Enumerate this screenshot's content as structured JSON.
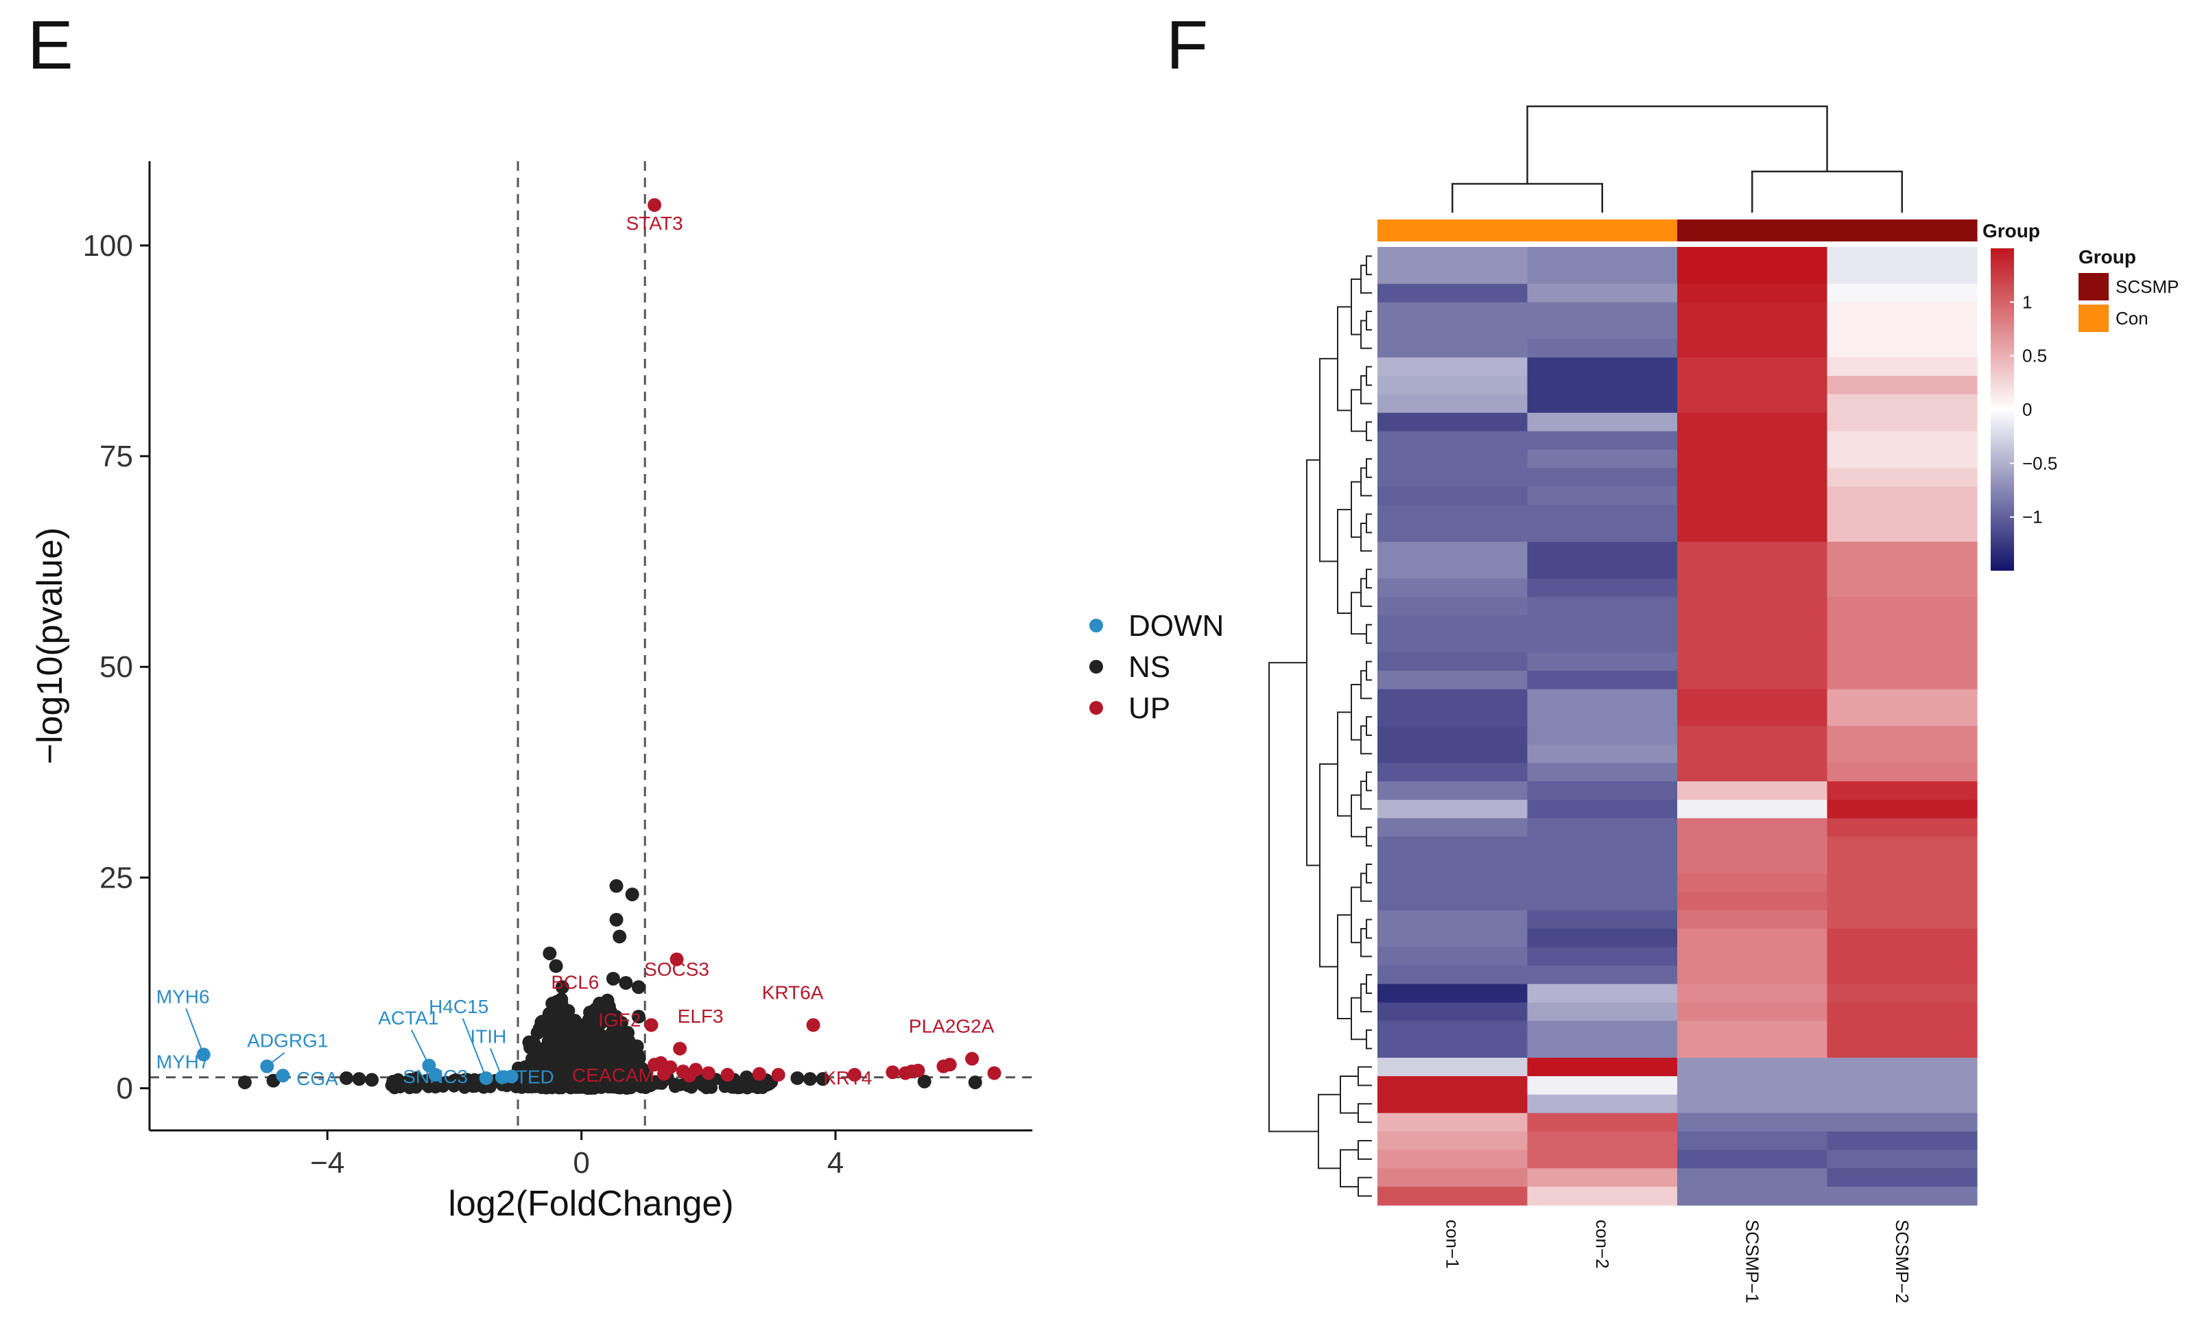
{
  "panels": {
    "left_label": "E",
    "right_label": "F"
  },
  "chart_data": [
    {
      "type": "scatter",
      "panel": "E",
      "xlabel": "log2(FoldChange)",
      "ylabel": "−log10(pvalue)",
      "xlim": [
        -6.8,
        7.1
      ],
      "ylim": [
        -5,
        110
      ],
      "xticks": [
        {
          "v": -4,
          "label": "−4"
        },
        {
          "v": 0,
          "label": "0"
        },
        {
          "v": 4,
          "label": "4"
        }
      ],
      "yticks": [
        {
          "v": 0,
          "label": "0"
        },
        {
          "v": 25,
          "label": "25"
        },
        {
          "v": 50,
          "label": "50"
        },
        {
          "v": 75,
          "label": "75"
        },
        {
          "v": 100,
          "label": "100"
        }
      ],
      "grid": false,
      "thresholds": {
        "x": [
          -1,
          1
        ],
        "y": 1.3
      },
      "legend": {
        "position": "right",
        "entries": [
          {
            "label": "DOWN",
            "color": "#2b8cc4"
          },
          {
            "label": "NS",
            "color": "#222222"
          },
          {
            "label": "UP",
            "color": "#b5172a"
          }
        ]
      },
      "series": {
        "DOWN": [
          [
            -5.95,
            4.0
          ],
          [
            -4.95,
            2.6
          ],
          [
            -4.7,
            1.5
          ],
          [
            -2.4,
            2.7
          ],
          [
            -2.3,
            1.6
          ],
          [
            -1.5,
            1.2
          ],
          [
            -1.25,
            1.3
          ],
          [
            -1.1,
            1.4
          ]
        ],
        "UP": [
          [
            1.15,
            104.8
          ],
          [
            1.5,
            15.3
          ],
          [
            1.1,
            7.5
          ],
          [
            1.55,
            4.7
          ],
          [
            3.65,
            7.5
          ],
          [
            1.15,
            2.8
          ],
          [
            1.25,
            3.0
          ],
          [
            1.4,
            2.5
          ],
          [
            1.6,
            2.0
          ],
          [
            1.8,
            2.2
          ],
          [
            2.0,
            1.8
          ],
          [
            2.3,
            1.6
          ],
          [
            2.8,
            1.7
          ],
          [
            3.1,
            1.6
          ],
          [
            4.3,
            1.6
          ],
          [
            4.9,
            1.9
          ],
          [
            5.1,
            1.8
          ],
          [
            5.2,
            2.0
          ],
          [
            5.3,
            2.1
          ],
          [
            5.7,
            2.6
          ],
          [
            5.8,
            2.8
          ],
          [
            6.15,
            3.5
          ],
          [
            6.5,
            1.8
          ],
          [
            1.3,
            1.7
          ],
          [
            1.7,
            1.5
          ]
        ],
        "NS": [
          [
            0.55,
            24.0
          ],
          [
            0.8,
            23.0
          ],
          [
            0.55,
            20.0
          ],
          [
            0.6,
            18.0
          ],
          [
            0.5,
            13.0
          ],
          [
            0.7,
            12.5
          ],
          [
            -0.5,
            16.0
          ],
          [
            -0.4,
            14.5
          ],
          [
            -0.3,
            12.0
          ],
          [
            0.9,
            8.5
          ],
          [
            0.9,
            12.0
          ],
          [
            -5.3,
            0.7
          ],
          [
            -4.85,
            0.9
          ],
          [
            -3.7,
            1.2
          ],
          [
            -3.5,
            1.1
          ],
          [
            -3.3,
            1.0
          ],
          [
            -2.7,
            1.0
          ],
          [
            -2.6,
            1.2
          ],
          [
            -2.0,
            0.9
          ],
          [
            -1.8,
            1.0
          ],
          [
            1.35,
            1.3
          ],
          [
            2.6,
            1.3
          ],
          [
            3.4,
            1.2
          ],
          [
            3.6,
            1.1
          ],
          [
            3.8,
            1.1
          ],
          [
            5.4,
            0.8
          ],
          [
            6.2,
            0.7
          ]
        ]
      },
      "labels": [
        {
          "text": "STAT3",
          "x": 1.15,
          "y": 104.8,
          "group": "UP"
        },
        {
          "text": "SOCS3",
          "x": 1.5,
          "y": 15.3,
          "group": "UP"
        },
        {
          "text": "BCL6",
          "x": -0.1,
          "y": 10.5,
          "group": "UP"
        },
        {
          "text": "IGF2",
          "x": 0.6,
          "y": 6.5,
          "group": "UP"
        },
        {
          "text": "ELF3",
          "x": 1.55,
          "y": 4.7,
          "group": "UP"
        },
        {
          "text": "KRT6A",
          "x": 3.65,
          "y": 7.5,
          "group": "UP"
        },
        {
          "text": "PLA2G2A",
          "x": 6.15,
          "y": 3.5,
          "group": "UP"
        },
        {
          "text": "KRT4",
          "x": 4.3,
          "y": 1.6,
          "group": "UP"
        },
        {
          "text": "CEACAM",
          "x": 0.5,
          "y": 1.6,
          "group": "UP"
        },
        {
          "text": "MYH6",
          "x": -5.95,
          "y": 4.0,
          "group": "DOWN"
        },
        {
          "text": "MYH7",
          "x": -5.95,
          "y": 4.0,
          "group": "DOWN"
        },
        {
          "text": "ADGRG1",
          "x": -4.95,
          "y": 2.6,
          "group": "DOWN"
        },
        {
          "text": "CGA",
          "x": -4.7,
          "y": 1.5,
          "group": "DOWN"
        },
        {
          "text": "ACTA1",
          "x": -2.4,
          "y": 2.7,
          "group": "DOWN"
        },
        {
          "text": "H4C15",
          "x": -1.5,
          "y": 1.2,
          "group": "DOWN"
        },
        {
          "text": "ITIH",
          "x": -1.25,
          "y": 1.3,
          "group": "DOWN"
        },
        {
          "text": "SNNC3",
          "x": -2.3,
          "y": 1.6,
          "group": "DOWN"
        },
        {
          "text": "CITED",
          "x": -1.1,
          "y": 1.4,
          "group": "DOWN"
        }
      ]
    },
    {
      "type": "heatmap",
      "panel": "F",
      "columns": [
        "con−1",
        "con−2",
        "SCSMP−1",
        "SCSMP−2"
      ],
      "column_groups": [
        "Con",
        "Con",
        "SCSMP",
        "SCSMP"
      ],
      "group_annotation": {
        "title": "Group",
        "levels": [
          {
            "label": "SCSMP",
            "color": "#8b0a0a"
          },
          {
            "label": "Con",
            "color": "#ff8c0a"
          }
        ]
      },
      "colorbar": {
        "title": "Group",
        "range": [
          -1.5,
          1.5
        ],
        "ticks": [
          {
            "v": 1,
            "label": "1"
          },
          {
            "v": 0.5,
            "label": "0.5"
          },
          {
            "v": 0,
            "label": "0"
          },
          {
            "v": -0.5,
            "label": "−0.5"
          },
          {
            "v": -1,
            "label": "−1"
          }
        ],
        "colors": {
          "low": "#1a1a6e",
          "mid": "#ffffff",
          "high": "#c0141e"
        }
      },
      "values": [
        [
          -0.7,
          -0.8,
          1.5,
          -0.15
        ],
        [
          -0.7,
          -0.8,
          1.5,
          -0.15
        ],
        [
          -1.1,
          -0.7,
          1.45,
          -0.05
        ],
        [
          -0.9,
          -0.9,
          1.4,
          0.1
        ],
        [
          -0.9,
          -0.9,
          1.4,
          0.1
        ],
        [
          -0.9,
          -0.95,
          1.4,
          0.1
        ],
        [
          -0.5,
          -1.3,
          1.3,
          0.2
        ],
        [
          -0.55,
          -1.3,
          1.3,
          0.5
        ],
        [
          -0.6,
          -1.3,
          1.3,
          0.3
        ],
        [
          -1.2,
          -0.6,
          1.4,
          0.3
        ],
        [
          -1.0,
          -1.0,
          1.4,
          0.2
        ],
        [
          -1.0,
          -0.9,
          1.4,
          0.2
        ],
        [
          -1.0,
          -1.0,
          1.4,
          0.3
        ],
        [
          -1.05,
          -0.95,
          1.4,
          0.4
        ],
        [
          -1.0,
          -1.0,
          1.4,
          0.4
        ],
        [
          -1.0,
          -1.0,
          1.4,
          0.4
        ],
        [
          -0.8,
          -1.2,
          1.2,
          0.8
        ],
        [
          -0.8,
          -1.2,
          1.2,
          0.8
        ],
        [
          -0.9,
          -1.1,
          1.2,
          0.8
        ],
        [
          -0.95,
          -1.0,
          1.2,
          0.85
        ],
        [
          -1.0,
          -1.0,
          1.2,
          0.85
        ],
        [
          -1.0,
          -1.0,
          1.2,
          0.85
        ],
        [
          -1.05,
          -0.95,
          1.2,
          0.85
        ],
        [
          -0.9,
          -1.1,
          1.2,
          0.85
        ],
        [
          -1.15,
          -0.8,
          1.3,
          0.6
        ],
        [
          -1.15,
          -0.8,
          1.3,
          0.6
        ],
        [
          -1.2,
          -0.8,
          1.2,
          0.8
        ],
        [
          -1.2,
          -0.75,
          1.2,
          0.8
        ],
        [
          -1.1,
          -0.9,
          1.2,
          0.85
        ],
        [
          -0.9,
          -1.05,
          0.4,
          1.35
        ],
        [
          -0.5,
          -1.1,
          -0.1,
          1.45
        ],
        [
          -0.9,
          -1.0,
          0.9,
          1.2
        ],
        [
          -1.0,
          -1.0,
          0.9,
          1.1
        ],
        [
          -1.0,
          -1.0,
          0.9,
          1.1
        ],
        [
          -1.0,
          -1.0,
          0.95,
          1.1
        ],
        [
          -1.0,
          -1.0,
          1.0,
          1.1
        ],
        [
          -0.9,
          -1.1,
          0.9,
          1.1
        ],
        [
          -0.9,
          -1.2,
          0.8,
          1.2
        ],
        [
          -0.95,
          -1.1,
          0.8,
          1.2
        ],
        [
          -1.0,
          -1.0,
          0.8,
          1.2
        ],
        [
          -1.4,
          -0.5,
          0.75,
          1.15
        ],
        [
          -1.2,
          -0.6,
          0.8,
          1.2
        ],
        [
          -1.1,
          -0.8,
          0.7,
          1.2
        ],
        [
          -1.1,
          -0.8,
          0.7,
          1.2
        ],
        [
          -0.3,
          1.5,
          -0.7,
          -0.7
        ],
        [
          1.45,
          -0.1,
          -0.7,
          -0.7
        ],
        [
          1.45,
          -0.5,
          -0.7,
          -0.7
        ],
        [
          0.5,
          1.1,
          -0.9,
          -0.9
        ],
        [
          0.6,
          1.0,
          -1.0,
          -1.1
        ],
        [
          0.7,
          1.0,
          -1.1,
          -1.0
        ],
        [
          0.8,
          0.6,
          -0.9,
          -1.1
        ],
        [
          1.1,
          0.3,
          -0.9,
          -0.9
        ]
      ]
    }
  ]
}
